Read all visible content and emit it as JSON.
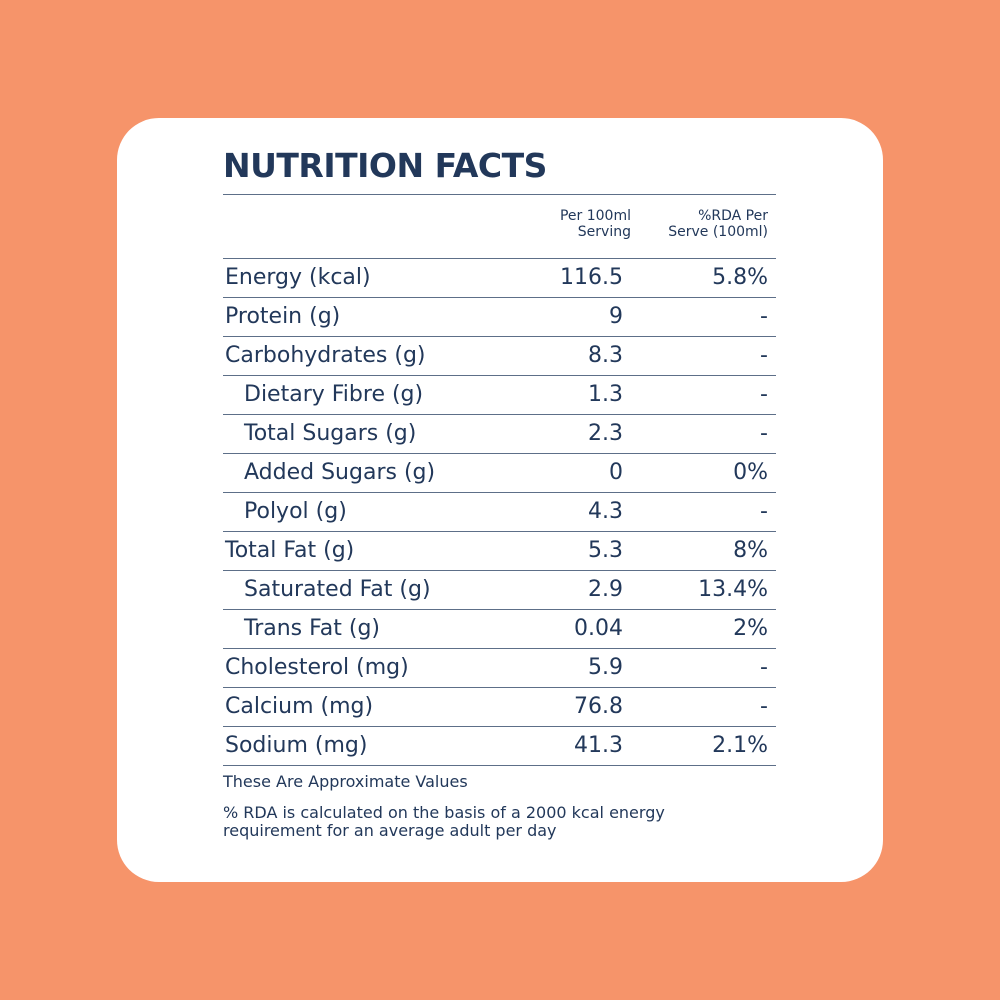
{
  "title": "NUTRITION FACTS",
  "columns": {
    "per_serving": [
      "Per 100ml",
      "Serving"
    ],
    "rda": [
      "%RDA Per",
      "Serve (100ml)"
    ]
  },
  "rows": [
    {
      "name": "Energy (kcal)",
      "value": "116.5",
      "rda": "5.8%",
      "sub": false
    },
    {
      "name": "Protein (g)",
      "value": "9",
      "rda": "-",
      "sub": false
    },
    {
      "name": "Carbohydrates (g)",
      "value": "8.3",
      "rda": "-",
      "sub": false
    },
    {
      "name": "Dietary Fibre (g)",
      "value": "1.3",
      "rda": "-",
      "sub": true
    },
    {
      "name": "Total Sugars (g)",
      "value": "2.3",
      "rda": "-",
      "sub": true
    },
    {
      "name": "Added Sugars (g)",
      "value": "0",
      "rda": "0%",
      "sub": true
    },
    {
      "name": "Polyol (g)",
      "value": "4.3",
      "rda": "-",
      "sub": true
    },
    {
      "name": "Total Fat (g)",
      "value": "5.3",
      "rda": "8%",
      "sub": false
    },
    {
      "name": "Saturated Fat (g)",
      "value": "2.9",
      "rda": "13.4%",
      "sub": true
    },
    {
      "name": "Trans Fat (g)",
      "value": "0.04",
      "rda": "2%",
      "sub": true
    },
    {
      "name": "Cholesterol (mg)",
      "value": "5.9",
      "rda": "-",
      "sub": false
    },
    {
      "name": "Calcium (mg)",
      "value": "76.8",
      "rda": "-",
      "sub": false
    },
    {
      "name": "Sodium (mg)",
      "value": "41.3",
      "rda": "2.1%",
      "sub": false
    }
  ],
  "notes": {
    "approx": "These Are Approximate Values",
    "rda_line1": "% RDA is calculated on the basis of a 2000 kcal energy",
    "rda_line2": "requirement for an average adult per day"
  },
  "colors": {
    "background": "#f6946a",
    "card": "#ffffff",
    "text": "#22385a"
  }
}
